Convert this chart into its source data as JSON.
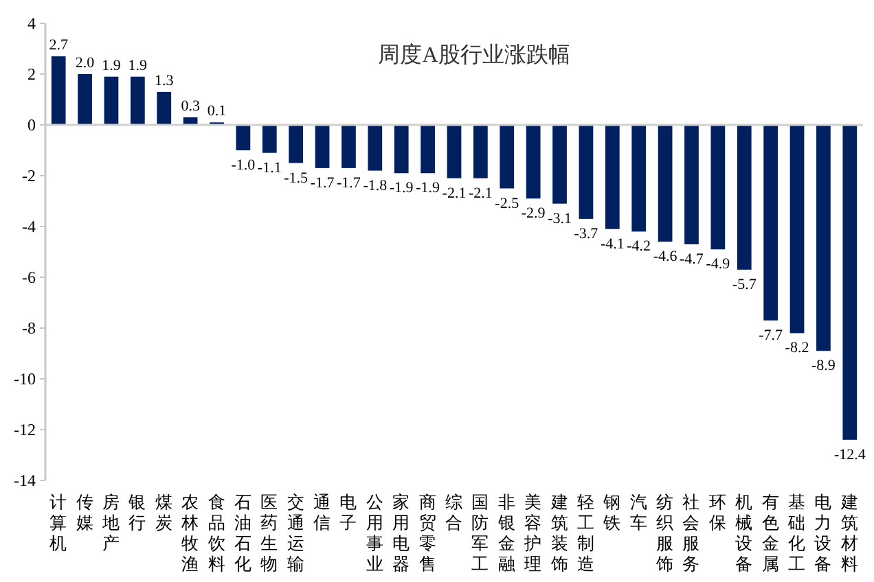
{
  "chart_data": {
    "type": "bar",
    "title": "周度A股行业涨跌幅",
    "categories": [
      "计算机",
      "传媒",
      "房地产",
      "银行",
      "煤炭",
      "农林牧渔",
      "食品饮料",
      "石油石化",
      "医药生物",
      "交通运输",
      "通信",
      "电子",
      "公用事业",
      "家用电器",
      "商贸零售",
      "综合",
      "国防军工",
      "非银金融",
      "美容护理",
      "建筑装饰",
      "轻工制造",
      "钢铁",
      "汽车",
      "纺织服饰",
      "社会服务",
      "环保",
      "机械设备",
      "有色金属",
      "基础化工",
      "电力设备",
      "建筑材料"
    ],
    "values": [
      2.7,
      2.0,
      1.9,
      1.9,
      1.3,
      0.3,
      0.1,
      -1.0,
      -1.1,
      -1.5,
      -1.7,
      -1.7,
      -1.8,
      -1.9,
      -1.9,
      -2.1,
      -2.1,
      -2.5,
      -2.9,
      -3.1,
      -3.7,
      -4.1,
      -4.2,
      -4.6,
      -4.7,
      -4.9,
      -5.7,
      -7.7,
      -8.2,
      -8.9,
      -12.4
    ],
    "value_labels": [
      "2.7",
      "2.0",
      "1.9",
      "1.9",
      "1.3",
      "0.3",
      "0.1",
      "-1.0",
      "-1.1",
      "-1.5",
      "-1.7",
      "-1.7",
      "-1.8",
      "-1.9",
      "-1.9",
      "-2.1",
      "-2.1",
      "-2.5",
      "-2.9",
      "-3.1",
      "-3.7",
      "-4.1",
      "-4.2",
      "-4.6",
      "-4.7",
      "-4.9",
      "-5.7",
      "-7.7",
      "-8.2",
      "-8.9",
      "-12.4"
    ],
    "color": "#002060",
    "ylim": [
      -14,
      4
    ],
    "yticks": [
      -14,
      -12,
      -10,
      -8,
      -6,
      -4,
      -2,
      0,
      2,
      4
    ]
  }
}
